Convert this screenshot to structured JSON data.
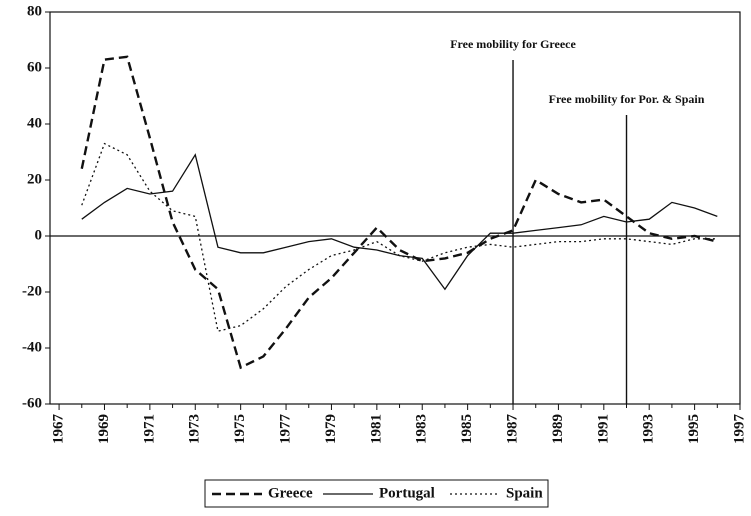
{
  "chart_data": {
    "type": "line",
    "x": [
      1968,
      1969,
      1970,
      1971,
      1972,
      1973,
      1974,
      1975,
      1976,
      1977,
      1978,
      1979,
      1980,
      1981,
      1982,
      1983,
      1984,
      1985,
      1986,
      1987,
      1988,
      1989,
      1990,
      1991,
      1992,
      1993,
      1994,
      1995,
      1996
    ],
    "series": [
      {
        "name": "Greece",
        "color": "#111",
        "dash": "dashed",
        "values": [
          24,
          63,
          64,
          35,
          5,
          -12,
          -19,
          -47,
          -43,
          -33,
          -22,
          -15,
          -6,
          3,
          -5,
          -9,
          -8,
          -6,
          -1,
          2,
          20,
          15,
          12,
          13,
          7,
          1,
          -1,
          0,
          -2
        ]
      },
      {
        "name": "Portugal",
        "color": "#111",
        "dash": "solid",
        "values": [
          6,
          12,
          17,
          15,
          16,
          29,
          -4,
          -6,
          -6,
          -4,
          -2,
          -1,
          -4,
          -5,
          -7,
          -8,
          -19,
          -7,
          1,
          1,
          2,
          3,
          4,
          7,
          5,
          6,
          12,
          10,
          7
        ]
      },
      {
        "name": "Spain",
        "color": "#111",
        "dash": "dotted",
        "values": [
          11,
          33,
          29,
          16,
          9,
          7,
          -34,
          -32,
          -26,
          -18,
          -12,
          -7,
          -5,
          -2,
          -7,
          -9,
          -6,
          -4,
          -3,
          -4,
          -3,
          -2,
          -2,
          -1,
          -1,
          -2,
          -3,
          -1,
          -1
        ]
      }
    ],
    "annotations": [
      {
        "text": "Free mobility for Greece",
        "x": 1987
      },
      {
        "text": "Free mobility for Por. & Spain",
        "x": 1992
      }
    ],
    "xlim": [
      1966.6,
      1997
    ],
    "xticks": [
      1967,
      1969,
      1971,
      1973,
      1975,
      1977,
      1979,
      1981,
      1983,
      1985,
      1987,
      1989,
      1991,
      1993,
      1995,
      1997
    ],
    "ylim": [
      -60,
      80
    ],
    "yticks": [
      -60,
      -40,
      -20,
      0,
      20,
      40,
      60,
      80
    ],
    "legend": "bottom"
  }
}
